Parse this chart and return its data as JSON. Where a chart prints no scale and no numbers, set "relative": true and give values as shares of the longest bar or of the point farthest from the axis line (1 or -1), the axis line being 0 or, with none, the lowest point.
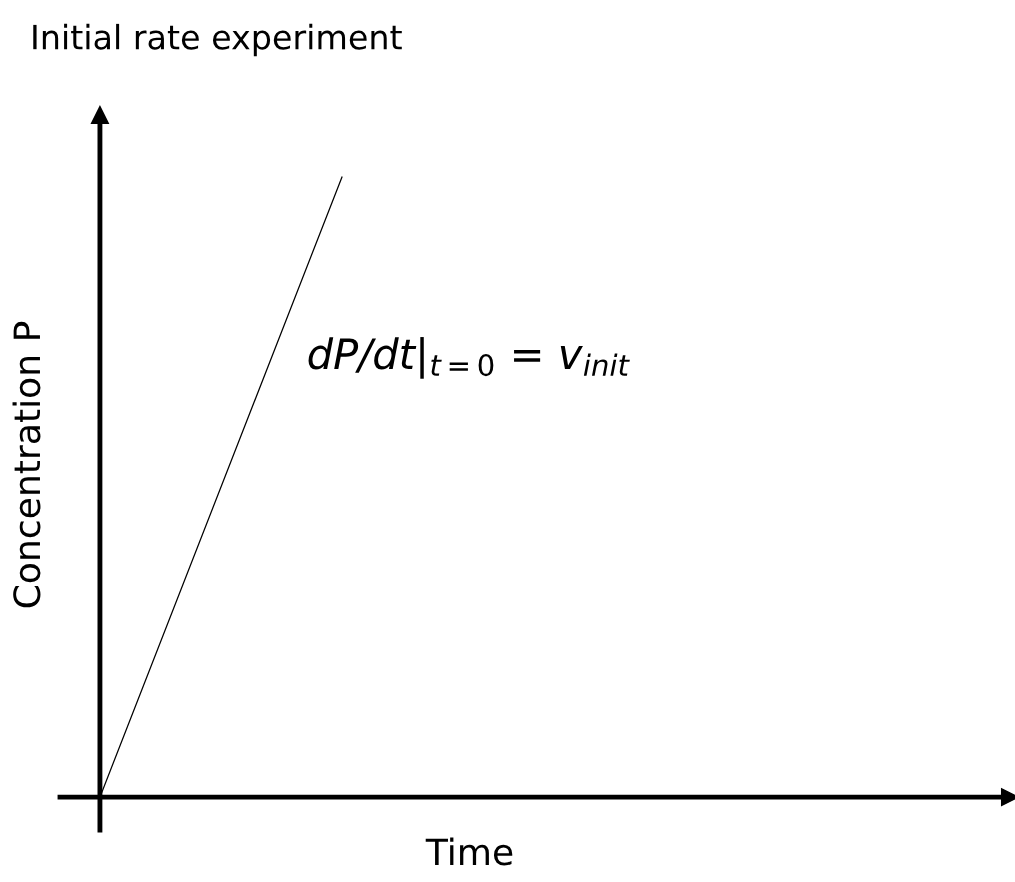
{
  "chart_data": {
    "type": "line",
    "title": "Initial rate experiment",
    "xlabel": "Time",
    "ylabel": "Concentration P",
    "categories": [
      null,
      null
    ],
    "relative": true,
    "series": [
      {
        "color": "#000000",
        "values": [
          0,
          1
        ]
      }
    ],
    "annotations": [
      "dP/dt|$_{t=0}$ = v$_{init}$"
    ],
    "marker": "none",
    "line_style": "solid"
  }
}
